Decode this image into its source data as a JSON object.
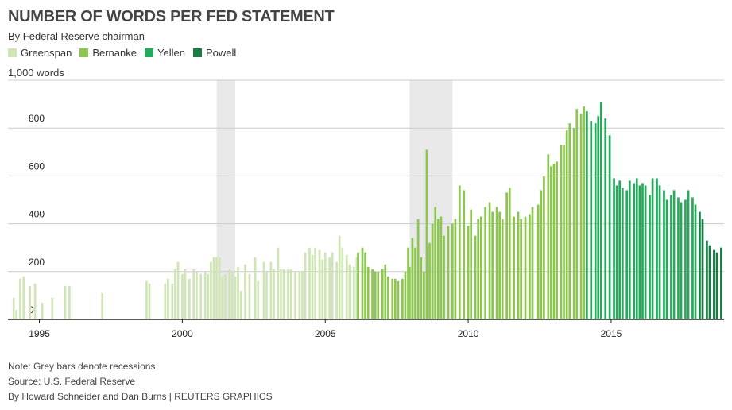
{
  "chart_data": {
    "type": "bar",
    "title": "NUMBER OF WORDS PER FED STATEMENT",
    "subtitle": "By Federal Reserve chairman",
    "ylabel": "1,000 words",
    "ylim": [
      0,
      1000
    ],
    "yticks": [
      0,
      200,
      400,
      600,
      800
    ],
    "xlim": [
      1993.9,
      2018.95
    ],
    "xticks": [
      1995,
      2000,
      2005,
      2010,
      2015
    ],
    "grid": true,
    "legend_position": "top-left",
    "colors": {
      "Greenspan": "#cfe5b5",
      "Bernanke": "#8cc54f",
      "Yellen": "#27a95b",
      "Powell": "#177e43",
      "recession": "#e9e9e9",
      "grid": "#cccccc",
      "axis": "#222222"
    },
    "series": [
      {
        "name": "Greenspan",
        "x": [
          1994.1,
          1994.2,
          1994.33,
          1994.45,
          1994.67,
          1994.85,
          1995.1,
          1995.45,
          1995.9,
          1996.05,
          1997.2,
          1998.75,
          1998.85,
          1999.4,
          1999.5,
          1999.65,
          1999.75,
          1999.85,
          2000.0,
          2000.1,
          2000.25,
          2000.4,
          2000.5,
          2000.65,
          2000.8,
          2000.9,
          2001.0,
          2001.1,
          2001.2,
          2001.3,
          2001.4,
          2001.5,
          2001.65,
          2001.75,
          2001.85,
          2001.95,
          2002.05,
          2002.2,
          2002.35,
          2002.55,
          2002.65,
          2002.85,
          2002.95,
          2003.1,
          2003.2,
          2003.35,
          2003.45,
          2003.55,
          2003.7,
          2003.8,
          2003.95,
          2004.1,
          2004.2,
          2004.3,
          2004.45,
          2004.55,
          2004.65,
          2004.8,
          2004.9,
          2005.0,
          2005.15,
          2005.25,
          2005.4,
          2005.5,
          2005.6,
          2005.75,
          2005.85,
          2006.0,
          2006.1
        ],
        "values": [
          90,
          40,
          170,
          180,
          140,
          150,
          70,
          90,
          140,
          140,
          110,
          160,
          150,
          150,
          170,
          150,
          210,
          240,
          190,
          210,
          170,
          210,
          200,
          190,
          200,
          190,
          240,
          260,
          260,
          260,
          180,
          190,
          210,
          200,
          180,
          220,
          120,
          230,
          190,
          260,
          160,
          240,
          200,
          240,
          210,
          300,
          210,
          210,
          210,
          210,
          200,
          200,
          200,
          280,
          300,
          270,
          300,
          290,
          250,
          280,
          260,
          280,
          240,
          350,
          300,
          270,
          230,
          220,
          260
        ]
      },
      {
        "name": "Bernanke",
        "x": [
          2006.15,
          2006.3,
          2006.4,
          2006.5,
          2006.65,
          2006.75,
          2006.85,
          2007.0,
          2007.1,
          2007.2,
          2007.35,
          2007.45,
          2007.55,
          2007.7,
          2007.8,
          2007.9,
          2007.95,
          2008.05,
          2008.15,
          2008.25,
          2008.35,
          2008.45,
          2008.55,
          2008.65,
          2008.75,
          2008.85,
          2008.95,
          2009.05,
          2009.15,
          2009.3,
          2009.45,
          2009.55,
          2009.7,
          2009.85,
          2010.0,
          2010.1,
          2010.25,
          2010.35,
          2010.45,
          2010.6,
          2010.75,
          2010.85,
          2011.0,
          2011.1,
          2011.2,
          2011.35,
          2011.45,
          2011.6,
          2011.75,
          2011.85,
          2012.0,
          2012.15,
          2012.25,
          2012.45,
          2012.55,
          2012.65,
          2012.8,
          2012.9,
          2013.0,
          2013.1,
          2013.25,
          2013.35,
          2013.45,
          2013.55,
          2013.7,
          2013.8,
          2013.95,
          2014.05
        ],
        "values": [
          280,
          300,
          280,
          220,
          210,
          200,
          200,
          210,
          230,
          180,
          170,
          170,
          160,
          170,
          200,
          300,
          220,
          340,
          300,
          420,
          260,
          200,
          710,
          320,
          400,
          470,
          420,
          430,
          350,
          390,
          400,
          420,
          560,
          540,
          390,
          460,
          350,
          420,
          430,
          470,
          490,
          450,
          470,
          450,
          420,
          530,
          550,
          430,
          450,
          420,
          430,
          440,
          470,
          480,
          540,
          600,
          690,
          640,
          650,
          660,
          730,
          730,
          790,
          820,
          800,
          880,
          860,
          890
        ]
      },
      {
        "name": "Yellen",
        "x": [
          2014.15,
          2014.3,
          2014.45,
          2014.55,
          2014.65,
          2014.8,
          2014.95,
          2015.1,
          2015.2,
          2015.3,
          2015.4,
          2015.55,
          2015.65,
          2015.8,
          2015.9,
          2016.0,
          2016.1,
          2016.2,
          2016.35,
          2016.45,
          2016.6,
          2016.7,
          2016.85,
          2016.95,
          2017.1,
          2017.2,
          2017.35,
          2017.45,
          2017.6,
          2017.7,
          2017.85,
          2017.95
        ],
        "values": [
          870,
          830,
          820,
          850,
          910,
          840,
          770,
          590,
          560,
          580,
          550,
          540,
          580,
          570,
          590,
          560,
          570,
          560,
          520,
          590,
          590,
          560,
          540,
          500,
          520,
          540,
          510,
          490,
          500,
          540,
          510,
          480
        ]
      },
      {
        "name": "Powell",
        "x": [
          2018.1,
          2018.2,
          2018.35,
          2018.45,
          2018.6,
          2018.7,
          2018.85
        ],
        "values": [
          450,
          420,
          330,
          310,
          290,
          280,
          300
        ]
      }
    ],
    "recessions": [
      [
        2001.2,
        2001.85
      ],
      [
        2007.95,
        2009.45
      ]
    ]
  },
  "notes": {
    "recessions": "Note: Grey bars denote recessions",
    "source": "Source: U.S. Federal Reserve",
    "credit": "By Howard Schneider and Dan Burns | REUTERS GRAPHICS"
  }
}
